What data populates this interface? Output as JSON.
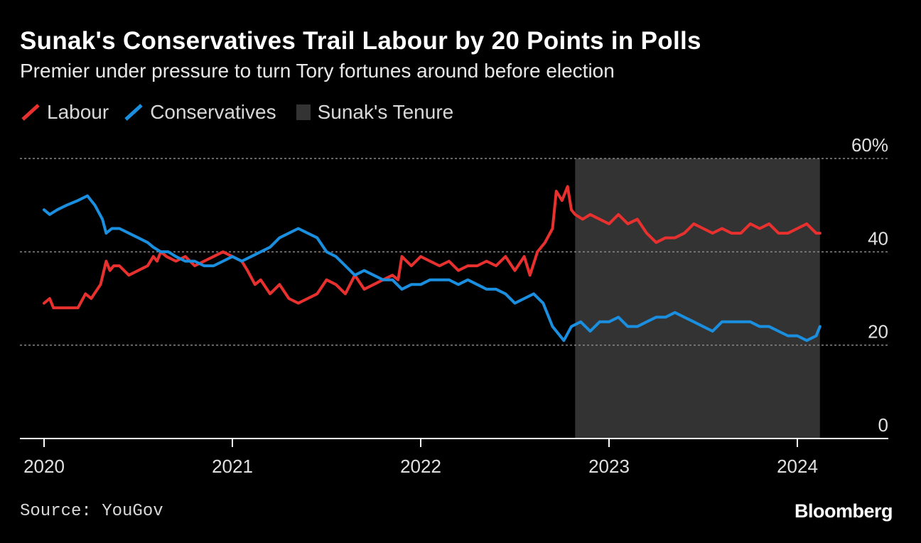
{
  "title": "Sunak's Conservatives Trail Labour by 20 Points in Polls",
  "subtitle": "Premier under pressure to turn Tory fortunes around before election",
  "legend": {
    "labour": "Labour",
    "conservatives": "Conservatives",
    "tenure": "Sunak's Tenure"
  },
  "source": "Source: YouGov",
  "brand": "Bloomberg",
  "colors": {
    "background": "#000000",
    "labour": "#e8312f",
    "conservatives": "#1a8fe0",
    "tenure": "#333333",
    "grid": "#888888",
    "axis": "#ffffff"
  },
  "chart_data": {
    "type": "line",
    "title": "Sunak's Conservatives Trail Labour by 20 Points in Polls",
    "subtitle": "Premier under pressure to turn Tory fortunes around before election",
    "xlabel": "",
    "ylabel": "",
    "ylim": [
      0,
      60
    ],
    "yticks": [
      0,
      20,
      40,
      60
    ],
    "ytick_labels": [
      "0",
      "20",
      "40",
      "60%"
    ],
    "y_axis_position": "right",
    "xticks": [
      2020,
      2021,
      2022,
      2023,
      2024
    ],
    "xtick_labels": [
      "2020",
      "2021",
      "2022",
      "2023",
      "2024"
    ],
    "grid": "horizontal dotted",
    "legend_position": "top-left",
    "shaded_region": {
      "name": "Sunak's Tenure",
      "x_start": 2022.82,
      "x_end": 2024.12
    },
    "series": [
      {
        "name": "Labour",
        "x": [
          2020.0,
          2020.03,
          2020.05,
          2020.1,
          2020.15,
          2020.18,
          2020.22,
          2020.25,
          2020.3,
          2020.33,
          2020.35,
          2020.37,
          2020.4,
          2020.45,
          2020.5,
          2020.55,
          2020.58,
          2020.6,
          2020.62,
          2020.65,
          2020.7,
          2020.75,
          2020.8,
          2020.85,
          2020.9,
          2020.95,
          2021.0,
          2021.05,
          2021.08,
          2021.12,
          2021.15,
          2021.2,
          2021.25,
          2021.3,
          2021.35,
          2021.4,
          2021.45,
          2021.5,
          2021.55,
          2021.6,
          2021.65,
          2021.7,
          2021.75,
          2021.8,
          2021.85,
          2021.88,
          2021.9,
          2021.95,
          2022.0,
          2022.05,
          2022.1,
          2022.15,
          2022.2,
          2022.25,
          2022.3,
          2022.35,
          2022.4,
          2022.45,
          2022.5,
          2022.55,
          2022.58,
          2022.62,
          2022.66,
          2022.7,
          2022.72,
          2022.75,
          2022.78,
          2022.8,
          2022.82,
          2022.86,
          2022.9,
          2022.95,
          2023.0,
          2023.05,
          2023.1,
          2023.15,
          2023.2,
          2023.25,
          2023.3,
          2023.35,
          2023.4,
          2023.45,
          2023.5,
          2023.55,
          2023.6,
          2023.65,
          2023.7,
          2023.75,
          2023.8,
          2023.85,
          2023.9,
          2023.95,
          2024.0,
          2024.05,
          2024.1,
          2024.12
        ],
        "values": [
          29,
          30,
          28,
          28,
          28,
          28,
          31,
          30,
          33,
          38,
          36,
          37,
          37,
          35,
          36,
          37,
          39,
          38,
          40,
          39,
          38,
          39,
          37,
          38,
          39,
          40,
          39,
          38,
          36,
          33,
          34,
          31,
          33,
          30,
          29,
          30,
          31,
          34,
          33,
          31,
          35,
          32,
          33,
          34,
          35,
          34,
          39,
          37,
          39,
          38,
          37,
          38,
          36,
          37,
          37,
          38,
          37,
          39,
          36,
          39,
          35,
          40,
          42,
          45,
          53,
          51,
          54,
          49,
          48,
          47,
          48,
          47,
          46,
          48,
          46,
          47,
          44,
          42,
          43,
          43,
          44,
          46,
          45,
          44,
          45,
          44,
          44,
          46,
          45,
          46,
          44,
          44,
          45,
          46,
          44,
          44
        ]
      },
      {
        "name": "Conservatives",
        "x": [
          2020.0,
          2020.03,
          2020.07,
          2020.12,
          2020.18,
          2020.23,
          2020.27,
          2020.31,
          2020.33,
          2020.36,
          2020.4,
          2020.45,
          2020.5,
          2020.55,
          2020.58,
          2020.62,
          2020.66,
          2020.7,
          2020.75,
          2020.8,
          2020.85,
          2020.9,
          2020.95,
          2021.0,
          2021.05,
          2021.1,
          2021.15,
          2021.2,
          2021.25,
          2021.3,
          2021.35,
          2021.4,
          2021.45,
          2021.5,
          2021.55,
          2021.6,
          2021.65,
          2021.7,
          2021.75,
          2021.8,
          2021.85,
          2021.9,
          2021.95,
          2022.0,
          2022.05,
          2022.1,
          2022.15,
          2022.2,
          2022.25,
          2022.3,
          2022.35,
          2022.4,
          2022.45,
          2022.5,
          2022.55,
          2022.6,
          2022.65,
          2022.7,
          2022.74,
          2022.76,
          2022.8,
          2022.85,
          2022.9,
          2022.95,
          2023.0,
          2023.05,
          2023.1,
          2023.15,
          2023.2,
          2023.25,
          2023.3,
          2023.35,
          2023.4,
          2023.45,
          2023.5,
          2023.55,
          2023.6,
          2023.65,
          2023.7,
          2023.75,
          2023.8,
          2023.85,
          2023.9,
          2023.95,
          2024.0,
          2024.05,
          2024.1,
          2024.12
        ],
        "values": [
          49,
          48,
          49,
          50,
          51,
          52,
          50,
          47,
          44,
          45,
          45,
          44,
          43,
          42,
          41,
          40,
          40,
          39,
          38,
          38,
          37,
          37,
          38,
          39,
          38,
          39,
          40,
          41,
          43,
          44,
          45,
          44,
          43,
          40,
          39,
          37,
          35,
          36,
          35,
          34,
          34,
          32,
          33,
          33,
          34,
          34,
          34,
          33,
          34,
          33,
          32,
          32,
          31,
          29,
          30,
          31,
          29,
          24,
          22,
          21,
          24,
          25,
          23,
          25,
          25,
          26,
          24,
          24,
          25,
          26,
          26,
          27,
          26,
          25,
          24,
          23,
          25,
          25,
          25,
          25,
          24,
          24,
          23,
          22,
          22,
          21,
          22,
          24
        ]
      }
    ]
  }
}
